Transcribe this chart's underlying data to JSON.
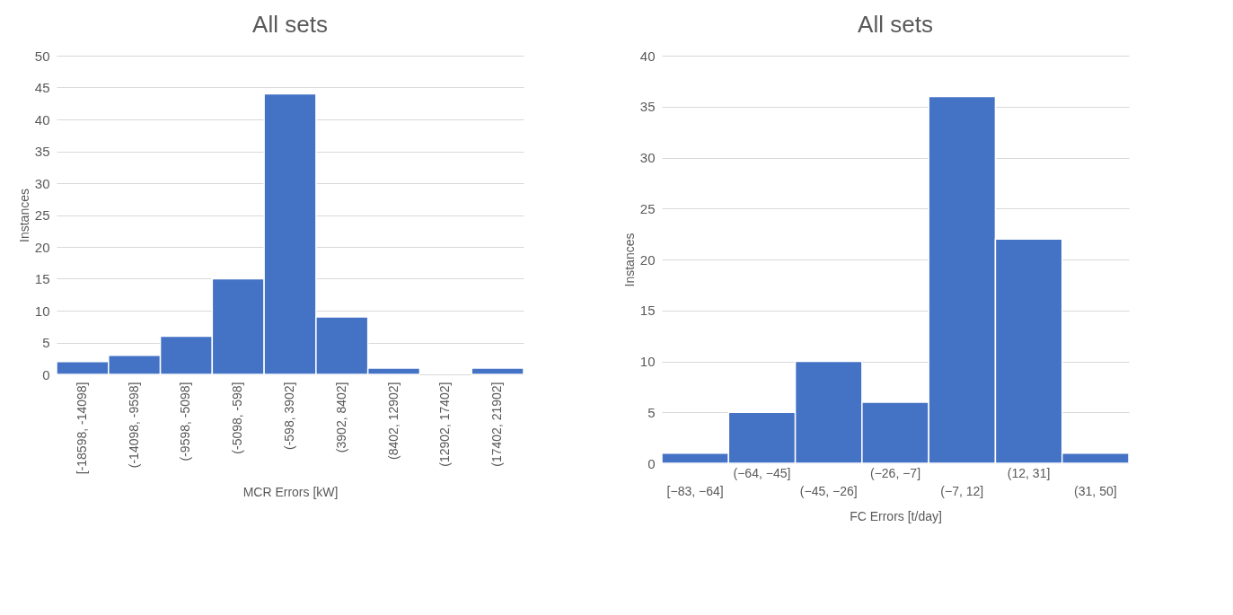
{
  "chart_data": [
    {
      "type": "bar",
      "title": "All sets",
      "xlabel": "MCR Errors [kW]",
      "ylabel": "Instances",
      "categories": [
        "[-18598, -14098]",
        "(-14098, -9598]",
        "(-9598, -5098]",
        "(-5098, -598]",
        "(-598, 3902]",
        "(3902, 8402]",
        "(8402, 12902]",
        "(12902, 17402]",
        "(17402, 21902]"
      ],
      "values": [
        2,
        3,
        6,
        15,
        44,
        9,
        1,
        0,
        1
      ],
      "color": "#4472c4",
      "ylim": [
        0,
        50
      ],
      "yticks": [
        0,
        5,
        10,
        15,
        20,
        25,
        30,
        35,
        40,
        45,
        50
      ],
      "grid": "y"
    },
    {
      "type": "bar",
      "title": "All sets",
      "xlabel": "FC Errors [t/day]",
      "ylabel": "Instances",
      "categories": [
        "[−83, −64]",
        "(−64, −45]",
        "(−45, −26]",
        "(−26, −7]",
        "(−7, 12]",
        "(12, 31]",
        "(31, 50]"
      ],
      "values": [
        1,
        5,
        10,
        6,
        36,
        22,
        1
      ],
      "color": "#4472c4",
      "ylim": [
        0,
        40
      ],
      "yticks": [
        0,
        5,
        10,
        15,
        20,
        25,
        30,
        35,
        40
      ],
      "grid": "y"
    }
  ]
}
